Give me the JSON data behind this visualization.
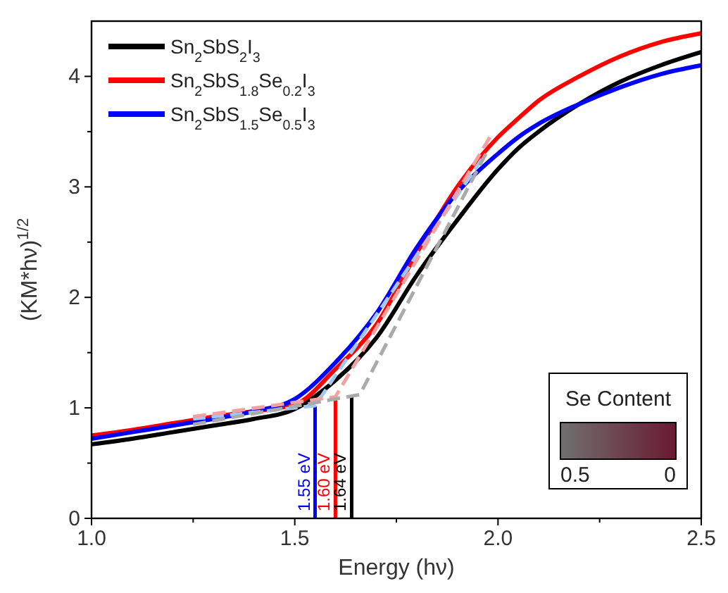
{
  "chart_data": {
    "type": "line",
    "xlabel": "Energy (hν)",
    "ylabel": "(KM*hν)$^{1/2}$",
    "xlim": [
      1,
      2.5
    ],
    "ylim": [
      0,
      4.5
    ],
    "xticks": [
      {
        "value": 1,
        "label": "1.0"
      },
      {
        "value": 1.25,
        "label": null
      },
      {
        "value": 1.5,
        "label": "1.5"
      },
      {
        "value": 1.75,
        "label": null
      },
      {
        "value": 2,
        "label": "2.0"
      },
      {
        "value": 2.25,
        "label": null
      },
      {
        "value": 2.5,
        "label": "2.5"
      }
    ],
    "yticks": [
      0,
      {
        "value": 0.5,
        "label": null
      },
      1,
      {
        "value": 1.5,
        "label": null
      },
      2,
      {
        "value": 2.5,
        "label": null
      },
      3,
      {
        "value": 3.5,
        "label": null
      },
      4
    ],
    "legend": "top left",
    "grid": false,
    "series": [
      {
        "name": "Sn$_{2}$SbS$_{2}$I$_{3}$",
        "color": "#000000",
        "x": [
          1,
          1.1,
          1.2,
          1.3,
          1.4,
          1.5,
          1.6,
          1.7,
          1.8,
          1.9,
          2,
          2.05,
          2.1,
          2.2,
          2.3,
          2.4,
          2.5
        ],
        "values": [
          0.67,
          0.72,
          0.78,
          0.84,
          0.9,
          0.99,
          1.25,
          1.63,
          2.2,
          2.7,
          3.16,
          3.35,
          3.5,
          3.75,
          3.95,
          4.1,
          4.22
        ]
      },
      {
        "name": "Sn$_{2}$SbS$_{1.8}$Se$_{0.2}$I$_{3}$",
        "color": "#ff0000",
        "x": [
          1,
          1.1,
          1.2,
          1.3,
          1.4,
          1.5,
          1.6,
          1.7,
          1.8,
          1.9,
          2,
          2.05,
          2.1,
          2.2,
          2.3,
          2.4,
          2.5
        ],
        "values": [
          0.75,
          0.8,
          0.86,
          0.92,
          0.97,
          1.03,
          1.35,
          1.75,
          2.4,
          3.0,
          3.45,
          3.62,
          3.78,
          4.0,
          4.18,
          4.31,
          4.39
        ]
      },
      {
        "name": "Sn$_{2}$SbS$_{1.5}$Se$_{0.5}$I$_{3}$",
        "color": "#0000ff",
        "x": [
          1,
          1.1,
          1.2,
          1.3,
          1.4,
          1.5,
          1.6,
          1.7,
          1.8,
          1.9,
          2,
          2.05,
          2.1,
          2.2,
          2.3,
          2.4,
          2.5
        ],
        "values": [
          0.72,
          0.78,
          0.84,
          0.9,
          0.97,
          1.08,
          1.41,
          1.85,
          2.45,
          2.95,
          3.3,
          3.45,
          3.57,
          3.75,
          3.9,
          4.02,
          4.1
        ]
      },
      {
        "color": "#aaaaaa",
        "line_style": "dashed",
        "x": [
          1.25,
          1.66,
          1.97
        ],
        "values": [
          0.85,
          1.12,
          3.3
        ]
      },
      {
        "color": "#f4a0a0",
        "line_style": "dashed",
        "x": [
          1.25,
          1.6,
          1.98
        ],
        "values": [
          0.92,
          1.1,
          3.45
        ]
      },
      {
        "color": "#a0c8f0",
        "line_style": "dashed",
        "x": [
          1.25,
          1.55,
          1.96
        ],
        "values": [
          0.9,
          1.02,
          3.25
        ]
      },
      {
        "color": "#0000ff",
        "x": [
          1.55,
          1.55
        ],
        "values": [
          0,
          1.02
        ]
      },
      {
        "color": "#ff0000",
        "x": [
          1.6,
          1.6
        ],
        "values": [
          0,
          1.1
        ]
      },
      {
        "color": "#000000",
        "x": [
          1.64,
          1.64
        ],
        "values": [
          0,
          1.1
        ]
      }
    ],
    "annotations": [
      {
        "text": "1.55 eV",
        "x": 1.55,
        "y": 0
      },
      {
        "text": "1.60 eV",
        "x": 1.6,
        "y": 0
      },
      {
        "text": "1.64 eV",
        "x": 1.64,
        "y": 0
      },
      "Se Content",
      "0.5",
      "0"
    ]
  }
}
